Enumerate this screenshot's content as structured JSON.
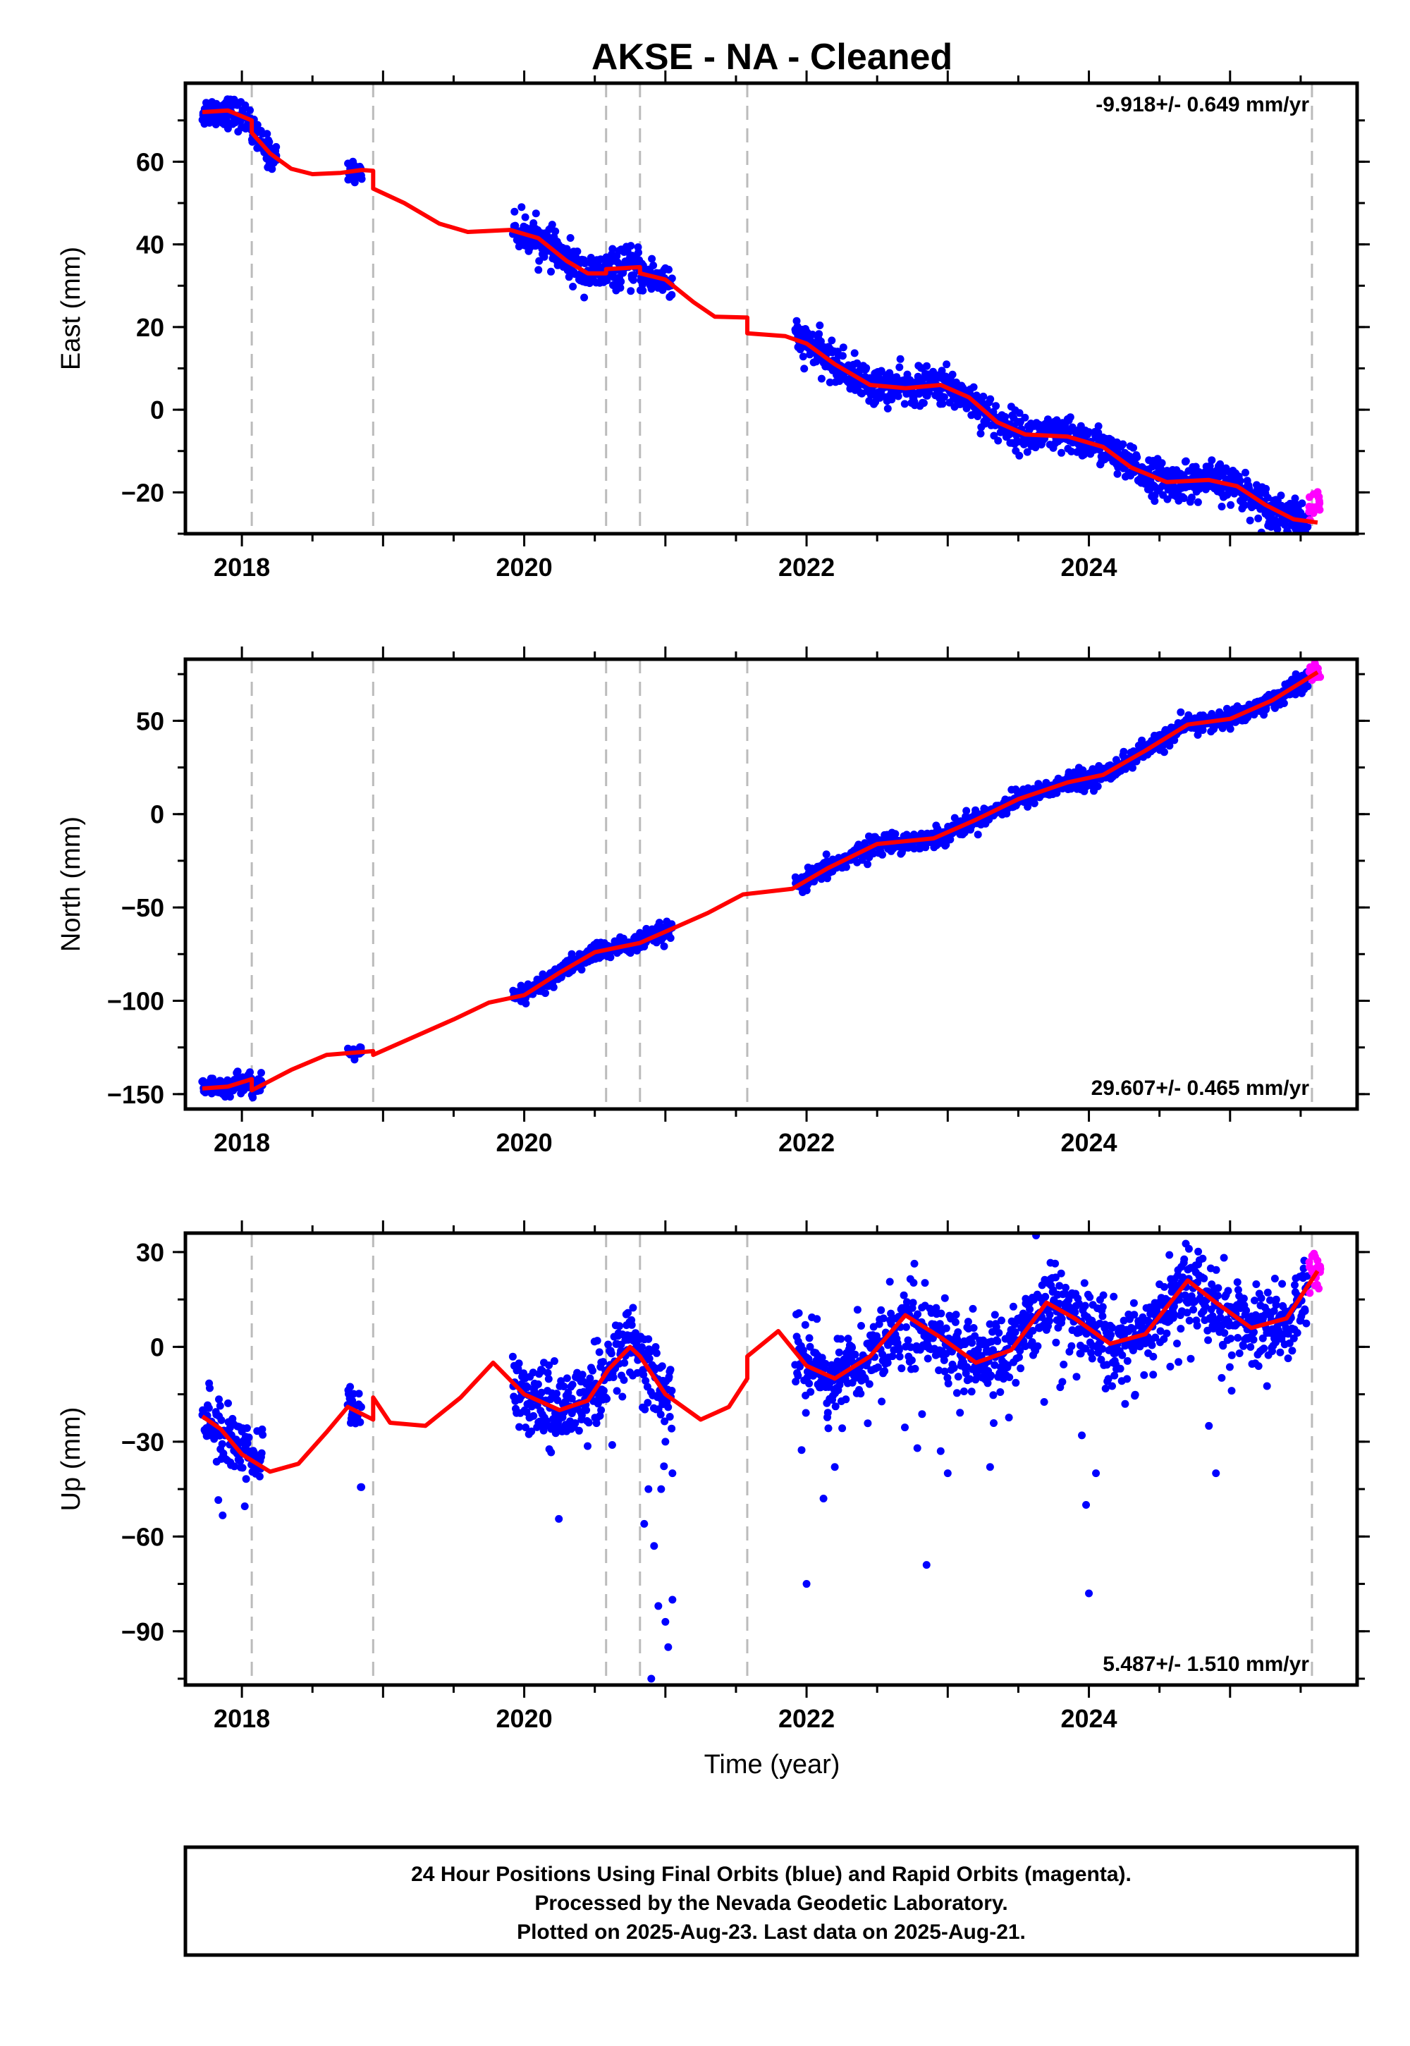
{
  "title": "AKSE  - NA - Cleaned",
  "xlabel": "Time (year)",
  "footer": {
    "line1": "24 Hour Positions Using Final Orbits (blue) and Rapid Orbits (magenta).",
    "line2": "Processed by the Nevada Geodetic Laboratory.",
    "line3": "Plotted on 2025-Aug-23. Last data on 2025-Aug-21."
  },
  "colors": {
    "final_orbits": "#0000ff",
    "rapid_orbits": "#ff00ff",
    "model": "#ff0000",
    "breaks": "#bbbbbb"
  },
  "chart_data": [
    {
      "type": "scatter",
      "name": "east",
      "ylabel": "East (mm)",
      "rate": "-9.918+/- 0.649 mm/yr",
      "rate_position": "top-right",
      "xlim": [
        2017.6,
        2025.9
      ],
      "ylim": [
        -30,
        79
      ],
      "xticks": [
        2018,
        2020,
        2022,
        2024
      ],
      "yticks": [
        -20,
        0,
        20,
        40,
        60
      ],
      "grid": false,
      "break_epochs": [
        2018.07,
        2018.93,
        2020.58,
        2020.82,
        2021.58,
        2025.58
      ],
      "model_line": [
        [
          2017.72,
          72
        ],
        [
          2017.9,
          72.4
        ],
        [
          2018.07,
          70
        ],
        [
          2018.07,
          67
        ],
        [
          2018.2,
          62
        ],
        [
          2018.35,
          58.3
        ],
        [
          2018.5,
          57
        ],
        [
          2018.7,
          57.3
        ],
        [
          2018.85,
          58
        ],
        [
          2018.93,
          57.8
        ],
        [
          2018.93,
          53.5
        ],
        [
          2019.15,
          50
        ],
        [
          2019.4,
          45
        ],
        [
          2019.6,
          43
        ],
        [
          2019.9,
          43.5
        ],
        [
          2020.1,
          41.5
        ],
        [
          2020.3,
          36
        ],
        [
          2020.45,
          33
        ],
        [
          2020.58,
          33
        ],
        [
          2020.58,
          34
        ],
        [
          2020.82,
          34.5
        ],
        [
          2020.82,
          33
        ],
        [
          2021.0,
          31.5
        ],
        [
          2021.2,
          26
        ],
        [
          2021.35,
          22.5
        ],
        [
          2021.58,
          22.3
        ],
        [
          2021.58,
          18.5
        ],
        [
          2021.85,
          17.8
        ],
        [
          2022.0,
          16
        ],
        [
          2022.2,
          11
        ],
        [
          2022.45,
          6
        ],
        [
          2022.7,
          5.2
        ],
        [
          2022.95,
          6
        ],
        [
          2023.15,
          3
        ],
        [
          2023.35,
          -3
        ],
        [
          2023.55,
          -6
        ],
        [
          2023.85,
          -6.5
        ],
        [
          2024.1,
          -9
        ],
        [
          2024.3,
          -14
        ],
        [
          2024.55,
          -17.5
        ],
        [
          2024.85,
          -17
        ],
        [
          2025.05,
          -18.5
        ],
        [
          2025.25,
          -23
        ],
        [
          2025.45,
          -26.5
        ],
        [
          2025.62,
          -27.3
        ]
      ],
      "final_segments": [
        {
          "start": 2017.72,
          "end": 2018.25,
          "center": 72,
          "slope": -20,
          "spread": 1.8
        },
        {
          "start": 2018.75,
          "end": 2018.85,
          "center": 57,
          "slope": 0,
          "spread": 1.2
        },
        {
          "start": 2019.92,
          "end": 2021.05,
          "center": 40,
          "slope": -9.5,
          "spread": 2.2
        },
        {
          "start": 2021.92,
          "end": 2025.55,
          "center": 16.5,
          "slope": -11.9,
          "spread": 2.2
        }
      ],
      "rapid_segment": {
        "start": 2025.56,
        "end": 2025.64,
        "center": -24,
        "spread": 2.2
      }
    },
    {
      "type": "scatter",
      "name": "north",
      "ylabel": "North (mm)",
      "rate": "29.607+/- 0.465 mm/yr",
      "rate_position": "bottom-right",
      "xlim": [
        2017.6,
        2025.9
      ],
      "ylim": [
        -158,
        83
      ],
      "xticks": [
        2018,
        2020,
        2022,
        2024
      ],
      "yticks": [
        -150,
        -100,
        -50,
        0,
        50
      ],
      "grid": false,
      "break_epochs": [
        2018.07,
        2018.93,
        2020.58,
        2020.82,
        2021.58,
        2025.58
      ],
      "model_line": [
        [
          2017.72,
          -147
        ],
        [
          2017.9,
          -146
        ],
        [
          2018.07,
          -142
        ],
        [
          2018.07,
          -148
        ],
        [
          2018.35,
          -137
        ],
        [
          2018.6,
          -129
        ],
        [
          2018.93,
          -127
        ],
        [
          2018.93,
          -129
        ],
        [
          2019.2,
          -120
        ],
        [
          2019.5,
          -110
        ],
        [
          2019.75,
          -101
        ],
        [
          2020.0,
          -97
        ],
        [
          2020.25,
          -85
        ],
        [
          2020.5,
          -74
        ],
        [
          2020.82,
          -69
        ],
        [
          2021.0,
          -63
        ],
        [
          2021.3,
          -53
        ],
        [
          2021.55,
          -43
        ],
        [
          2021.9,
          -40
        ],
        [
          2022.15,
          -29
        ],
        [
          2022.5,
          -16
        ],
        [
          2022.9,
          -13
        ],
        [
          2023.2,
          -3
        ],
        [
          2023.5,
          8
        ],
        [
          2023.85,
          17
        ],
        [
          2024.1,
          21
        ],
        [
          2024.4,
          34
        ],
        [
          2024.7,
          48
        ],
        [
          2025.0,
          51
        ],
        [
          2025.3,
          61
        ],
        [
          2025.62,
          76
        ]
      ],
      "final_segments": [
        {
          "start": 2017.72,
          "end": 2018.15,
          "center": -147,
          "slope": 14,
          "spread": 2.5
        },
        {
          "start": 2018.75,
          "end": 2018.85,
          "center": -127,
          "slope": 0,
          "spread": 1.5
        },
        {
          "start": 2019.92,
          "end": 2021.05,
          "center": -98,
          "slope": 29.6,
          "spread": 2.5
        },
        {
          "start": 2021.92,
          "end": 2025.55,
          "center": -40,
          "slope": 29.6,
          "spread": 2.5
        }
      ],
      "rapid_segment": {
        "start": 2025.56,
        "end": 2025.64,
        "center": 75,
        "spread": 2.5
      }
    },
    {
      "type": "scatter",
      "name": "up",
      "ylabel": "Up (mm)",
      "rate": "5.487+/- 1.510 mm/yr",
      "rate_position": "bottom-right",
      "xlim": [
        2017.6,
        2025.9
      ],
      "ylim": [
        -107,
        36
      ],
      "xticks": [
        2018,
        2020,
        2022,
        2024
      ],
      "yticks": [
        -90,
        -60,
        -30,
        0,
        30
      ],
      "grid": false,
      "break_epochs": [
        2018.07,
        2018.93,
        2020.58,
        2020.82,
        2021.58,
        2025.58
      ],
      "model_line": [
        [
          2017.72,
          -22
        ],
        [
          2017.85,
          -26
        ],
        [
          2018.0,
          -34
        ],
        [
          2018.2,
          -39.5
        ],
        [
          2018.4,
          -37
        ],
        [
          2018.6,
          -27
        ],
        [
          2018.75,
          -19
        ],
        [
          2018.93,
          -23
        ],
        [
          2018.93,
          -16
        ],
        [
          2019.05,
          -24
        ],
        [
          2019.3,
          -25
        ],
        [
          2019.55,
          -16
        ],
        [
          2019.78,
          -5
        ],
        [
          2020.0,
          -15
        ],
        [
          2020.25,
          -20
        ],
        [
          2020.45,
          -17
        ],
        [
          2020.6,
          -7
        ],
        [
          2020.75,
          0
        ],
        [
          2020.82,
          -3
        ],
        [
          2021.0,
          -15
        ],
        [
          2021.25,
          -23
        ],
        [
          2021.45,
          -19
        ],
        [
          2021.58,
          -10
        ],
        [
          2021.58,
          -3
        ],
        [
          2021.8,
          5
        ],
        [
          2022.0,
          -6
        ],
        [
          2022.2,
          -10
        ],
        [
          2022.45,
          -3
        ],
        [
          2022.7,
          10
        ],
        [
          2022.95,
          3
        ],
        [
          2023.2,
          -5
        ],
        [
          2023.45,
          -1
        ],
        [
          2023.7,
          14
        ],
        [
          2023.9,
          9
        ],
        [
          2024.15,
          1
        ],
        [
          2024.4,
          4
        ],
        [
          2024.7,
          21
        ],
        [
          2024.9,
          14
        ],
        [
          2025.15,
          6
        ],
        [
          2025.4,
          9
        ],
        [
          2025.62,
          24
        ]
      ],
      "final_segments": [
        {
          "start": 2017.72,
          "end": 2018.15,
          "center": -30,
          "slope": 0,
          "spread": 5
        },
        {
          "start": 2018.75,
          "end": 2018.85,
          "center": -17,
          "slope": 0,
          "spread": 4
        },
        {
          "start": 2019.92,
          "end": 2021.05,
          "center": -12,
          "slope": 0,
          "spread": 6
        },
        {
          "start": 2021.92,
          "end": 2025.55,
          "center": 0,
          "slope": 0,
          "spread": 6
        }
      ],
      "rapid_segment": {
        "start": 2025.56,
        "end": 2025.64,
        "center": 24,
        "spread": 4
      },
      "outliers": [
        [
          2020.9,
          -105
        ],
        [
          2021.02,
          -95
        ],
        [
          2021.0,
          -87
        ],
        [
          2021.05,
          -80
        ],
        [
          2020.95,
          -82
        ],
        [
          2020.85,
          -56
        ],
        [
          2020.92,
          -63
        ],
        [
          2020.97,
          -45
        ],
        [
          2021.0,
          -30
        ],
        [
          2021.05,
          -40
        ],
        [
          2020.88,
          -45
        ],
        [
          2022.0,
          -75
        ],
        [
          2022.12,
          -48
        ],
        [
          2022.2,
          -38
        ],
        [
          2022.85,
          -69
        ],
        [
          2023.0,
          -40
        ],
        [
          2023.3,
          -38
        ],
        [
          2022.95,
          -33
        ],
        [
          2024.0,
          -78
        ],
        [
          2023.98,
          -50
        ],
        [
          2024.05,
          -40
        ],
        [
          2023.95,
          -28
        ],
        [
          2024.9,
          -40
        ],
        [
          2024.85,
          -25
        ]
      ]
    }
  ]
}
